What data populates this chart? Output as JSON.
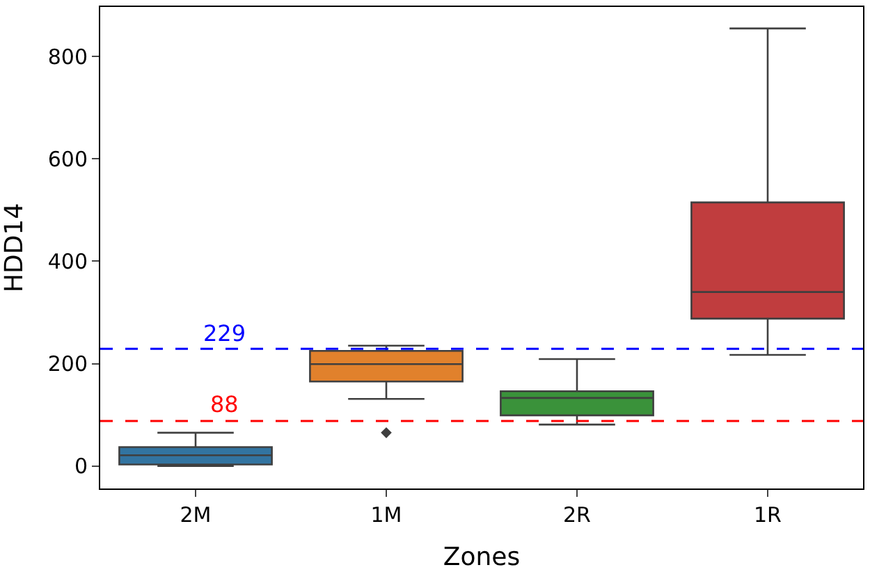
{
  "chart_data": {
    "type": "box",
    "xlabel": "Zones",
    "ylabel": "HDD14",
    "categories": [
      "2M",
      "1M",
      "2R",
      "1R"
    ],
    "colors": [
      "#3274a1",
      "#e1812c",
      "#3a923a",
      "#c03d3e"
    ],
    "boxes": [
      {
        "low": 0,
        "q1": 3,
        "median": 21,
        "q3": 37,
        "high": 65
      },
      {
        "low": 131,
        "q1": 165,
        "median": 199,
        "q3": 225,
        "high": 235,
        "outliers": [
          65
        ]
      },
      {
        "low": 81,
        "q1": 99,
        "median": 133,
        "q3": 146,
        "high": 209
      },
      {
        "low": 217,
        "q1": 288,
        "median": 340,
        "q3": 515,
        "high": 855
      }
    ],
    "ylim": [
      -44,
      897
    ],
    "yticks": [
      0,
      200,
      400,
      600,
      800
    ],
    "legend": false,
    "ref_lines": [
      {
        "axis": "y",
        "value": 229,
        "label": "229",
        "color": "#0000ff",
        "line_style": "dashed"
      },
      {
        "axis": "y",
        "value": 88,
        "label": "88",
        "color": "#ff0000",
        "line_style": "dashed"
      }
    ]
  }
}
